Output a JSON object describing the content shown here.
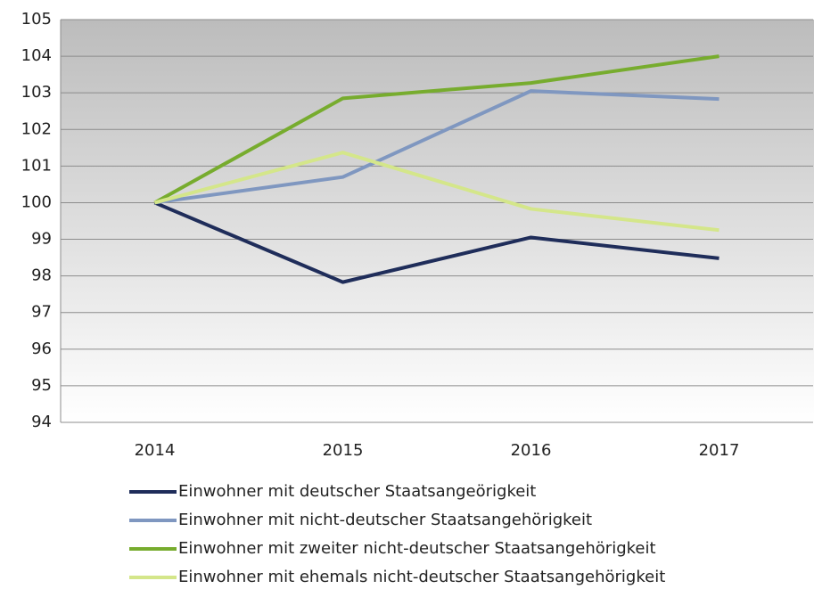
{
  "chart_data": {
    "type": "line",
    "categories": [
      "2014",
      "2015",
      "2016",
      "2017"
    ],
    "series": [
      {
        "name": "Einwohner mit deutscher Staatsangeörigkeit",
        "color": "#1f2d5a",
        "values": [
          100,
          97.83,
          99.05,
          98.48
        ]
      },
      {
        "name": "Einwohner mit nicht-deutscher Staatsangehörigkeit",
        "color": "#7f97c0",
        "values": [
          100,
          100.7,
          103.05,
          102.83
        ]
      },
      {
        "name": "Einwohner mit zweiter nicht-deutscher Staatsangehörigkeit",
        "color": "#77ac2e",
        "values": [
          100,
          102.85,
          103.27,
          104.0
        ]
      },
      {
        "name": "Einwohner mit ehemals nicht-deutscher Staatsangehörigkeit",
        "color": "#d4e68a",
        "values": [
          100,
          101.37,
          99.83,
          99.25
        ]
      }
    ],
    "ylim": [
      94,
      105
    ],
    "yticks": [
      94,
      95,
      96,
      97,
      98,
      99,
      100,
      101,
      102,
      103,
      104,
      105
    ],
    "grid": true,
    "legend": "bottom"
  }
}
